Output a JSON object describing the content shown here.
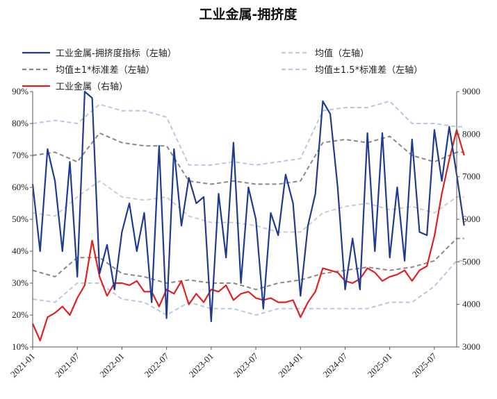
{
  "chart_data": {
    "type": "line",
    "title": "工业金属-拥挤度",
    "x_ticks": [
      "2021-01",
      "2021-07",
      "2022-01",
      "2022-07",
      "2023-01",
      "2023-07",
      "2024-01",
      "2024-07",
      "2025-01",
      "2025-07"
    ],
    "x_range": [
      "2021-01",
      "2025-10"
    ],
    "y_left": {
      "ticks": [
        "10%",
        "20%",
        "30%",
        "40%",
        "50%",
        "60%",
        "70%",
        "80%",
        "90%"
      ],
      "range": [
        10,
        90
      ]
    },
    "y_right": {
      "ticks": [
        "3000",
        "4000",
        "5000",
        "6000",
        "7000",
        "8000",
        "9000"
      ],
      "range": [
        3000,
        9000
      ]
    },
    "legend": [
      {
        "label": "工业金属-拥挤度指标（左轴）",
        "series": "crowding"
      },
      {
        "label": "均值（左轴）",
        "series": "mean"
      },
      {
        "label": "均值±1*标准差（左轴）",
        "series": "std1"
      },
      {
        "label": "均值±1.5*标准差（左轴）",
        "series": "std15"
      },
      {
        "label": "工业金属（右轴）",
        "series": "metal"
      }
    ],
    "series": {
      "crowding": {
        "axis": "left",
        "color": "#1f3a93",
        "dash": "",
        "points": [
          [
            "2021-01",
            61
          ],
          [
            "2021-02",
            40
          ],
          [
            "2021-03",
            72
          ],
          [
            "2021-04",
            62
          ],
          [
            "2021-05",
            40
          ],
          [
            "2021-06",
            68
          ],
          [
            "2021-07",
            32
          ],
          [
            "2021-08",
            90
          ],
          [
            "2021-09",
            88
          ],
          [
            "2021-10",
            33
          ],
          [
            "2021-11",
            42
          ],
          [
            "2021-12",
            28
          ],
          [
            "2022-01",
            46
          ],
          [
            "2022-02",
            55
          ],
          [
            "2022-03",
            40
          ],
          [
            "2022-04",
            52
          ],
          [
            "2022-05",
            24
          ],
          [
            "2022-06",
            73
          ],
          [
            "2022-07",
            19
          ],
          [
            "2022-08",
            72
          ],
          [
            "2022-09",
            48
          ],
          [
            "2022-10",
            63
          ],
          [
            "2022-11",
            55
          ],
          [
            "2022-12",
            57
          ],
          [
            "2023-01",
            18
          ],
          [
            "2023-02",
            58
          ],
          [
            "2023-03",
            38
          ],
          [
            "2023-04",
            74
          ],
          [
            "2023-05",
            30
          ],
          [
            "2023-06",
            60
          ],
          [
            "2023-07",
            50
          ],
          [
            "2023-08",
            22
          ],
          [
            "2023-09",
            52
          ],
          [
            "2023-10",
            45
          ],
          [
            "2023-11",
            64
          ],
          [
            "2023-12",
            55
          ],
          [
            "2024-01",
            26
          ],
          [
            "2024-02",
            48
          ],
          [
            "2024-03",
            58
          ],
          [
            "2024-04",
            87
          ],
          [
            "2024-05",
            83
          ],
          [
            "2024-06",
            60
          ],
          [
            "2024-07",
            28
          ],
          [
            "2024-08",
            44
          ],
          [
            "2024-09",
            28
          ],
          [
            "2024-10",
            77
          ],
          [
            "2024-11",
            40
          ],
          [
            "2024-12",
            77
          ],
          [
            "2025-01",
            38
          ],
          [
            "2025-02",
            60
          ],
          [
            "2025-03",
            37
          ],
          [
            "2025-04",
            75
          ],
          [
            "2025-05",
            46
          ],
          [
            "2025-06",
            45
          ],
          [
            "2025-07",
            78
          ],
          [
            "2025-08",
            62
          ],
          [
            "2025-09",
            79
          ],
          [
            "2025-10",
            64
          ],
          [
            "2025-11",
            48
          ]
        ]
      },
      "mean": {
        "axis": "left",
        "color": "#cccccc",
        "dash": "6,4",
        "points": [
          [
            "2021-01",
            52
          ],
          [
            "2021-04",
            51
          ],
          [
            "2021-07",
            57
          ],
          [
            "2021-10",
            62
          ],
          [
            "2022-01",
            57
          ],
          [
            "2022-04",
            56
          ],
          [
            "2022-07",
            57
          ],
          [
            "2022-10",
            51
          ],
          [
            "2023-01",
            49
          ],
          [
            "2023-04",
            49
          ],
          [
            "2023-07",
            48
          ],
          [
            "2023-10",
            46
          ],
          [
            "2024-01",
            46
          ],
          [
            "2024-04",
            52
          ],
          [
            "2024-07",
            54
          ],
          [
            "2024-10",
            55
          ],
          [
            "2025-01",
            53
          ],
          [
            "2025-04",
            54
          ],
          [
            "2025-07",
            52
          ],
          [
            "2025-10",
            57
          ],
          [
            "2025-11",
            57
          ]
        ]
      },
      "std1_upper": {
        "axis": "left",
        "color": "#888888",
        "dash": "6,4",
        "points": [
          [
            "2021-01",
            70
          ],
          [
            "2021-04",
            71
          ],
          [
            "2021-07",
            68
          ],
          [
            "2021-10",
            77
          ],
          [
            "2022-01",
            74
          ],
          [
            "2022-04",
            73
          ],
          [
            "2022-07",
            73
          ],
          [
            "2022-10",
            62
          ],
          [
            "2023-01",
            61
          ],
          [
            "2023-04",
            62
          ],
          [
            "2023-07",
            61
          ],
          [
            "2023-10",
            61
          ],
          [
            "2024-01",
            62
          ],
          [
            "2024-04",
            74
          ],
          [
            "2024-07",
            75
          ],
          [
            "2024-10",
            74
          ],
          [
            "2025-01",
            76
          ],
          [
            "2025-04",
            70
          ],
          [
            "2025-07",
            68
          ],
          [
            "2025-10",
            71
          ],
          [
            "2025-11",
            71
          ]
        ]
      },
      "std1_lower": {
        "axis": "left",
        "color": "#888888",
        "dash": "6,4",
        "points": [
          [
            "2021-01",
            34
          ],
          [
            "2021-04",
            32
          ],
          [
            "2021-07",
            38
          ],
          [
            "2021-10",
            38
          ],
          [
            "2022-01",
            33
          ],
          [
            "2022-04",
            32
          ],
          [
            "2022-07",
            30
          ],
          [
            "2022-10",
            31
          ],
          [
            "2023-01",
            30
          ],
          [
            "2023-04",
            30
          ],
          [
            "2023-07",
            28
          ],
          [
            "2023-10",
            30
          ],
          [
            "2024-01",
            31
          ],
          [
            "2024-04",
            33
          ],
          [
            "2024-07",
            34
          ],
          [
            "2024-10",
            35
          ],
          [
            "2025-01",
            34
          ],
          [
            "2025-04",
            35
          ],
          [
            "2025-07",
            37
          ],
          [
            "2025-10",
            44
          ],
          [
            "2025-11",
            44
          ]
        ]
      },
      "std15_upper": {
        "axis": "left",
        "color": "#b8c8e0",
        "dash": "6,4",
        "points": [
          [
            "2021-01",
            80
          ],
          [
            "2021-04",
            81
          ],
          [
            "2021-07",
            80
          ],
          [
            "2021-10",
            86
          ],
          [
            "2022-01",
            84
          ],
          [
            "2022-04",
            84
          ],
          [
            "2022-07",
            82
          ],
          [
            "2022-10",
            67
          ],
          [
            "2023-01",
            67
          ],
          [
            "2023-04",
            68
          ],
          [
            "2023-07",
            67
          ],
          [
            "2023-10",
            68
          ],
          [
            "2024-01",
            69
          ],
          [
            "2024-04",
            84
          ],
          [
            "2024-07",
            85
          ],
          [
            "2024-10",
            85
          ],
          [
            "2025-01",
            87
          ],
          [
            "2025-04",
            80
          ],
          [
            "2025-07",
            80
          ],
          [
            "2025-10",
            79
          ],
          [
            "2025-11",
            79
          ]
        ]
      },
      "std15_lower": {
        "axis": "left",
        "color": "#b8c8e0",
        "dash": "6,4",
        "points": [
          [
            "2021-01",
            25
          ],
          [
            "2021-04",
            24
          ],
          [
            "2021-07",
            30
          ],
          [
            "2021-10",
            30
          ],
          [
            "2022-01",
            25
          ],
          [
            "2022-04",
            24
          ],
          [
            "2022-07",
            20
          ],
          [
            "2022-10",
            24
          ],
          [
            "2023-01",
            22
          ],
          [
            "2023-04",
            22
          ],
          [
            "2023-07",
            20
          ],
          [
            "2023-10",
            22
          ],
          [
            "2024-01",
            22
          ],
          [
            "2024-04",
            22
          ],
          [
            "2024-07",
            22
          ],
          [
            "2024-10",
            22
          ],
          [
            "2025-01",
            24
          ],
          [
            "2025-04",
            24
          ],
          [
            "2025-07",
            29
          ],
          [
            "2025-10",
            37
          ],
          [
            "2025-11",
            37
          ]
        ]
      },
      "metal": {
        "axis": "right",
        "color": "#e02020",
        "dash": "",
        "points": [
          [
            "2021-01",
            3550
          ],
          [
            "2021-02",
            3150
          ],
          [
            "2021-03",
            3700
          ],
          [
            "2021-04",
            3800
          ],
          [
            "2021-05",
            3950
          ],
          [
            "2021-06",
            3750
          ],
          [
            "2021-07",
            4150
          ],
          [
            "2021-08",
            4450
          ],
          [
            "2021-09",
            5500
          ],
          [
            "2021-10",
            4650
          ],
          [
            "2021-11",
            4200
          ],
          [
            "2021-12",
            4500
          ],
          [
            "2022-01",
            4500
          ],
          [
            "2022-02",
            4450
          ],
          [
            "2022-03",
            4550
          ],
          [
            "2022-04",
            4300
          ],
          [
            "2022-05",
            4300
          ],
          [
            "2022-06",
            3950
          ],
          [
            "2022-07",
            4350
          ],
          [
            "2022-08",
            4250
          ],
          [
            "2022-09",
            4550
          ],
          [
            "2022-10",
            4000
          ],
          [
            "2022-11",
            4250
          ],
          [
            "2022-12",
            4050
          ],
          [
            "2023-01",
            4350
          ],
          [
            "2023-02",
            4300
          ],
          [
            "2023-03",
            4450
          ],
          [
            "2023-04",
            4100
          ],
          [
            "2023-05",
            4250
          ],
          [
            "2023-06",
            4300
          ],
          [
            "2023-07",
            4150
          ],
          [
            "2023-08",
            4100
          ],
          [
            "2023-09",
            4150
          ],
          [
            "2023-10",
            4050
          ],
          [
            "2023-11",
            4050
          ],
          [
            "2023-12",
            4100
          ],
          [
            "2024-01",
            3700
          ],
          [
            "2024-02",
            4050
          ],
          [
            "2024-03",
            4300
          ],
          [
            "2024-04",
            4850
          ],
          [
            "2024-05",
            4800
          ],
          [
            "2024-06",
            4750
          ],
          [
            "2024-07",
            4550
          ],
          [
            "2024-08",
            4500
          ],
          [
            "2024-09",
            4600
          ],
          [
            "2024-10",
            4850
          ],
          [
            "2024-11",
            4750
          ],
          [
            "2024-12",
            4550
          ],
          [
            "2025-01",
            4650
          ],
          [
            "2025-02",
            4700
          ],
          [
            "2025-03",
            4800
          ],
          [
            "2025-04",
            4550
          ],
          [
            "2025-05",
            4800
          ],
          [
            "2025-06",
            4900
          ],
          [
            "2025-07",
            5600
          ],
          [
            "2025-08",
            6600
          ],
          [
            "2025-09",
            7400
          ],
          [
            "2025-10",
            8100
          ],
          [
            "2025-11",
            7500
          ]
        ]
      }
    }
  }
}
